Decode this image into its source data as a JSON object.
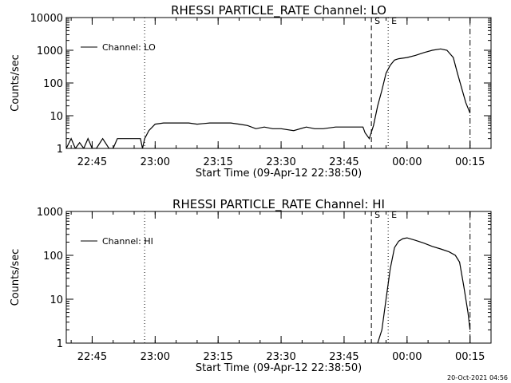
{
  "footer": {
    "timestamp": "20-Oct-2021 04:56"
  },
  "chart_data": [
    {
      "type": "line",
      "title": "RHESSI PARTICLE_RATE Channel: LO",
      "xlabel": "Start Time (09-Apr-12 22:38:50)",
      "ylabel": "Counts/sec",
      "yscale": "log",
      "ylim": [
        1,
        10000
      ],
      "xlim": [
        "22:38:50",
        "00:20:00"
      ],
      "x_ticks": [
        "22:45",
        "23:00",
        "23:15",
        "23:30",
        "23:45",
        "00:00",
        "00:15"
      ],
      "y_ticks": [
        "1",
        "10",
        "100",
        "1000",
        "10000"
      ],
      "legend": {
        "position": "top-left",
        "entries": [
          "Channel: LO"
        ]
      },
      "markers": [
        {
          "time": "22:57:30",
          "style": "dotted",
          "label": ""
        },
        {
          "time": "23:51:30",
          "style": "dashed",
          "label": "S"
        },
        {
          "time": "23:55:30",
          "style": "dotted",
          "label": "E"
        },
        {
          "time": "00:15:00",
          "style": "dash-dot",
          "label": ""
        }
      ],
      "series": [
        {
          "name": "Channel: LO",
          "x": [
            "22:38:50",
            "22:40:00",
            "22:41:00",
            "22:42:00",
            "22:43:00",
            "22:44:00",
            "22:45:00",
            "22:46:00",
            "22:47:30",
            "22:49:00",
            "22:50:00",
            "22:51:00",
            "22:53:00",
            "22:55:00",
            "22:56:30",
            "22:57:00",
            "22:57:30",
            "22:58:30",
            "23:00:00",
            "23:02:00",
            "23:05:00",
            "23:08:00",
            "23:10:00",
            "23:13:00",
            "23:15:00",
            "23:18:00",
            "23:20:00",
            "23:22:00",
            "23:24:00",
            "23:26:00",
            "23:28:00",
            "23:30:00",
            "23:33:00",
            "23:36:00",
            "23:38:00",
            "23:40:00",
            "23:43:00",
            "23:45:00",
            "23:47:00",
            "23:48:30",
            "23:49:30",
            "23:50:00",
            "23:51:00",
            "23:52:00",
            "23:53:00",
            "23:54:00",
            "23:55:00",
            "23:56:00",
            "23:57:00",
            "23:58:00",
            "00:00:00",
            "00:02:00",
            "00:04:00",
            "00:06:00",
            "00:08:00",
            "00:09:30",
            "00:11:00",
            "00:12:00",
            "00:13:00",
            "00:14:00",
            "00:15:00"
          ],
          "y": [
            1,
            2,
            1,
            1.5,
            1,
            2,
            1,
            1,
            2,
            1,
            1,
            2,
            2,
            2,
            2,
            1,
            2,
            3.5,
            5.5,
            6,
            6,
            6,
            5.5,
            6,
            6,
            6,
            5.5,
            5,
            4,
            4.5,
            4,
            4,
            3.5,
            4.5,
            4,
            4,
            4.5,
            4.5,
            4.5,
            4.5,
            4.5,
            3,
            2,
            5,
            20,
            60,
            200,
            350,
            500,
            550,
            600,
            700,
            850,
            1000,
            1100,
            1000,
            600,
            200,
            70,
            25,
            12
          ]
        }
      ]
    },
    {
      "type": "line",
      "title": "RHESSI PARTICLE_RATE Channel: HI",
      "xlabel": "Start Time (09-Apr-12 22:38:50)",
      "ylabel": "Counts/sec",
      "yscale": "log",
      "ylim": [
        1,
        1000
      ],
      "xlim": [
        "22:38:50",
        "00:20:00"
      ],
      "x_ticks": [
        "22:45",
        "23:00",
        "23:15",
        "23:30",
        "23:45",
        "00:00",
        "00:15"
      ],
      "y_ticks": [
        "1",
        "10",
        "100",
        "1000"
      ],
      "legend": {
        "position": "top-left",
        "entries": [
          "Channel: HI"
        ]
      },
      "markers": [
        {
          "time": "22:57:30",
          "style": "dotted",
          "label": ""
        },
        {
          "time": "23:51:30",
          "style": "dashed",
          "label": "S"
        },
        {
          "time": "23:55:30",
          "style": "dotted",
          "label": "E"
        },
        {
          "time": "00:15:00",
          "style": "dash-dot",
          "label": ""
        }
      ],
      "series": [
        {
          "name": "Channel: HI",
          "x": [
            "23:53:00",
            "23:54:00",
            "23:55:00",
            "23:56:00",
            "23:57:00",
            "23:58:00",
            "23:59:00",
            "00:00:00",
            "00:02:00",
            "00:04:00",
            "00:06:00",
            "00:08:00",
            "00:10:00",
            "00:11:30",
            "00:12:30",
            "00:13:30",
            "00:14:30",
            "00:15:00"
          ],
          "y": [
            1,
            2,
            10,
            50,
            150,
            210,
            240,
            250,
            220,
            190,
            160,
            140,
            120,
            100,
            70,
            20,
            5,
            2
          ]
        }
      ]
    }
  ]
}
